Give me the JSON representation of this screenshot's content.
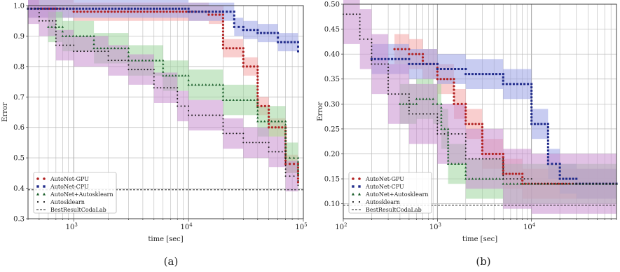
{
  "figure": {
    "captions": [
      "(a)",
      "(b)"
    ]
  },
  "chart_data": [
    {
      "type": "line",
      "panel": "(a)",
      "xlabel": "time [sec]",
      "ylabel": "Error",
      "xscale": "log",
      "xlim": [
        400,
        100000
      ],
      "ylim": [
        0.3,
        1.0
      ],
      "xticks": [
        {
          "value": 1000,
          "label": "10^3"
        },
        {
          "value": 10000,
          "label": "10^4"
        },
        {
          "value": 100000,
          "label": "10^5"
        }
      ],
      "yticks": [
        0.3,
        0.4,
        0.5,
        0.6,
        0.7,
        0.8,
        0.9,
        1.0
      ],
      "grid": true,
      "legend_position": "bottom-left",
      "baseline": {
        "name": "BestResultCodaLab",
        "value": 0.395,
        "style": "dashed"
      },
      "series": [
        {
          "name": "AutoNet-GPU",
          "color": "#b22222",
          "band": "#f4a5a5",
          "marker": "circle",
          "x": [
            400,
            700,
            1000,
            2000,
            5000,
            15000,
            20000,
            30000,
            40000,
            50000,
            70000,
            90000
          ],
          "y": [
            0.99,
            0.99,
            0.98,
            0.98,
            0.98,
            0.97,
            0.86,
            0.8,
            0.67,
            0.6,
            0.48,
            0.42
          ],
          "band_width": 0.03
        },
        {
          "name": "AutoNet-CPU",
          "color": "#1f2a8a",
          "band": "#9aa3e6",
          "marker": "square",
          "x": [
            400,
            3000,
            10000,
            20000,
            25000,
            30000,
            40000,
            60000,
            90000
          ],
          "y": [
            0.99,
            0.99,
            0.98,
            0.98,
            0.93,
            0.92,
            0.91,
            0.88,
            0.85
          ],
          "band_width": 0.03
        },
        {
          "name": "AutoNet+Autosklearn",
          "color": "#1a5e2a",
          "band": "#9fd69f",
          "marker": "triangle",
          "x": [
            600,
            800,
            1500,
            3000,
            6000,
            10000,
            20000,
            40000,
            70000,
            90000
          ],
          "y": [
            0.93,
            0.9,
            0.86,
            0.82,
            0.77,
            0.74,
            0.69,
            0.62,
            0.5,
            0.45
          ],
          "band_width": 0.05
        },
        {
          "name": "Autosklearn",
          "color": "#1a1a1a",
          "band": "#c990cf",
          "marker": "dot",
          "x": [
            400,
            500,
            700,
            1000,
            2000,
            3000,
            5000,
            8000,
            10000,
            20000,
            30000,
            50000,
            70000,
            90000
          ],
          "y": [
            0.99,
            0.95,
            0.87,
            0.85,
            0.82,
            0.79,
            0.73,
            0.67,
            0.64,
            0.58,
            0.55,
            0.52,
            0.44,
            0.41
          ],
          "band_width": 0.05
        }
      ]
    },
    {
      "type": "line",
      "panel": "(b)",
      "xlabel": "time [sec]",
      "ylabel": "Error",
      "xscale": "log",
      "xlim": [
        100,
        80000
      ],
      "ylim": [
        0.07,
        0.5
      ],
      "xticks": [
        {
          "value": 100,
          "label": "10^2"
        },
        {
          "value": 1000,
          "label": "10^3"
        },
        {
          "value": 10000,
          "label": "10^4"
        }
      ],
      "yticks": [
        0.1,
        0.15,
        0.2,
        0.25,
        0.3,
        0.35,
        0.4,
        0.45,
        0.5
      ],
      "grid": true,
      "legend_position": "bottom-left",
      "baseline": {
        "name": "BestResultCodaLab",
        "value": 0.097,
        "style": "dashed"
      },
      "series": [
        {
          "name": "AutoNet-GPU",
          "color": "#b22222",
          "band": "#f4a5a5",
          "marker": "circle",
          "x": [
            350,
            500,
            700,
            1000,
            1500,
            2000,
            3000,
            5000,
            8000,
            15000,
            30000,
            80000
          ],
          "y": [
            0.41,
            0.4,
            0.38,
            0.35,
            0.3,
            0.26,
            0.2,
            0.16,
            0.14,
            0.14,
            0.14,
            0.14
          ],
          "band_width": 0.03
        },
        {
          "name": "AutoNet-CPU",
          "color": "#1f2a8a",
          "band": "#9aa3e6",
          "marker": "square",
          "x": [
            200,
            500,
            1000,
            2000,
            5000,
            10000,
            15000,
            20000,
            30000,
            80000
          ],
          "y": [
            0.39,
            0.38,
            0.37,
            0.36,
            0.34,
            0.26,
            0.18,
            0.15,
            0.14,
            0.14
          ],
          "band_width": 0.03
        },
        {
          "name": "AutoNet+Autosklearn",
          "color": "#1a5e2a",
          "band": "#9fd69f",
          "marker": "triangle",
          "x": [
            400,
            600,
            900,
            1100,
            1300,
            2000,
            5000,
            10000,
            30000,
            80000
          ],
          "y": [
            0.3,
            0.31,
            0.3,
            0.25,
            0.18,
            0.15,
            0.14,
            0.14,
            0.14,
            0.14
          ],
          "band_width": 0.04
        },
        {
          "name": "Autosklearn",
          "color": "#1a1a1a",
          "band": "#c990cf",
          "marker": "dot",
          "x": [
            100,
            150,
            200,
            300,
            500,
            1000,
            2000,
            5000,
            10000,
            30000,
            80000
          ],
          "y": [
            0.48,
            0.43,
            0.38,
            0.32,
            0.28,
            0.24,
            0.19,
            0.15,
            0.14,
            0.14,
            0.14
          ],
          "band_width": 0.06
        }
      ]
    }
  ]
}
